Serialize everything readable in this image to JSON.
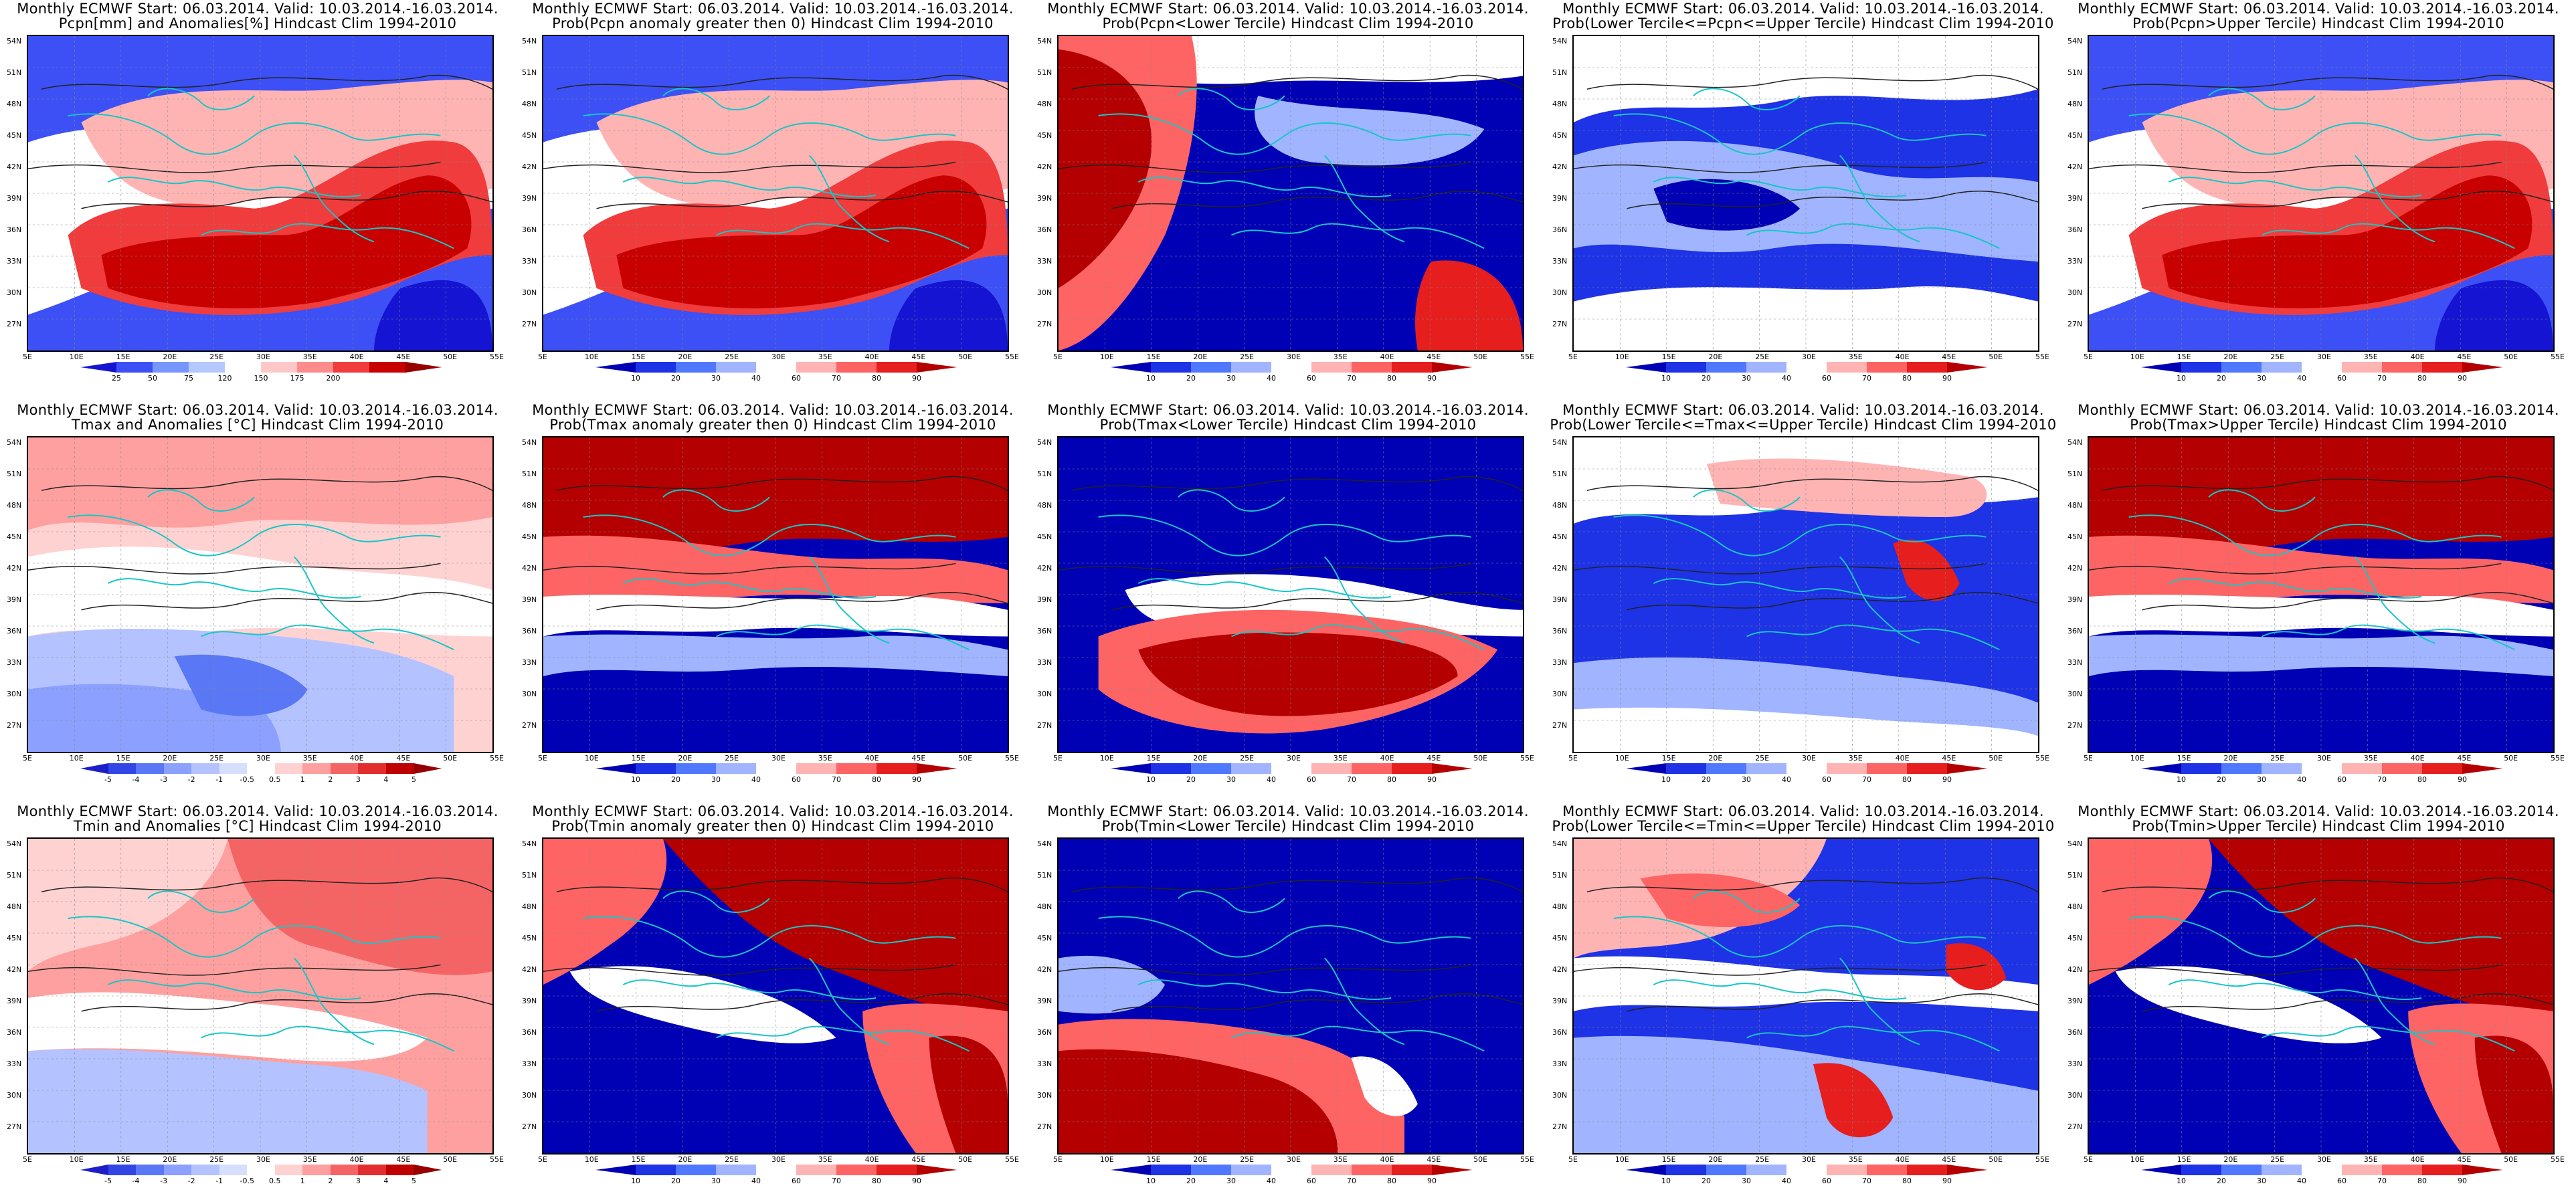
{
  "map_axes": {
    "lat_labels": [
      "54N",
      "51N",
      "48N",
      "45N",
      "42N",
      "39N",
      "36N",
      "33N",
      "30N",
      "27N"
    ],
    "lon_labels": [
      "5E",
      "10E",
      "15E",
      "20E",
      "25E",
      "30E",
      "35E",
      "40E",
      "45E",
      "50E",
      "55E"
    ]
  },
  "colorbars": {
    "precip_anomaly": {
      "ticks": [
        "25",
        "50",
        "75",
        "120",
        "150",
        "175",
        "200"
      ],
      "colors": [
        "#1414d2",
        "#3c50f5",
        "#7896ff",
        "#b4c8ff",
        "#ffffff",
        "#ffc8c8",
        "#ff8c8c",
        "#f03c3c",
        "#c80000",
        "#960000"
      ]
    },
    "probability": {
      "ticks": [
        "10",
        "20",
        "30",
        "40",
        "60",
        "70",
        "80",
        "90"
      ],
      "colors": [
        "#0000b4",
        "#1e32e6",
        "#5078ff",
        "#a0b4ff",
        "#ffffff",
        "#ffb4b4",
        "#ff6464",
        "#e61e1e",
        "#b40000"
      ]
    },
    "temp_anomaly": {
      "ticks": [
        "-5",
        "-4",
        "-3",
        "-2",
        "-1",
        "-0.5",
        "0.5",
        "1",
        "2",
        "3",
        "4",
        "5"
      ],
      "colors": [
        "#1e1ec8",
        "#3246e6",
        "#5a78f5",
        "#8ca0ff",
        "#b4c3ff",
        "#d7dfff",
        "#ffffff",
        "#ffd2d2",
        "#ffa0a0",
        "#f56464",
        "#e12d2d",
        "#be0000",
        "#960000"
      ]
    }
  },
  "panels": [
    {
      "title_line1": "Monthly ECMWF Start: 06.03.2014. Valid: 10.03.2014.-16.03.2014.",
      "title_line2": "Pcpn[mm] and Anomalies[%] Hindcast Clim 1994-2010",
      "colorbar": "precip_anomaly",
      "pattern": "precip_mean"
    },
    {
      "title_line1": "Monthly ECMWF Start: 06.03.2014. Valid: 10.03.2014.-16.03.2014.",
      "title_line2": "Prob(Pcpn anomaly greater then 0) Hindcast Clim 1994-2010",
      "colorbar": "probability",
      "pattern": "precip_mean"
    },
    {
      "title_line1": "Monthly ECMWF Start: 06.03.2014. Valid: 10.03.2014.-16.03.2014.",
      "title_line2": "Prob(Pcpn<Lower Tercile) Hindcast Clim 1994-2010",
      "colorbar": "probability",
      "pattern": "precip_low"
    },
    {
      "title_line1": "Monthly ECMWF Start: 06.03.2014. Valid: 10.03.2014.-16.03.2014.",
      "title_line2": "Prob(Lower Tercile<=Pcpn<=Upper Tercile) Hindcast Clim 1994-2010",
      "colorbar": "probability",
      "pattern": "precip_mid"
    },
    {
      "title_line1": "Monthly ECMWF Start: 06.03.2014. Valid: 10.03.2014.-16.03.2014.",
      "title_line2": "Prob(Pcpn>Upper Tercile) Hindcast Clim 1994-2010",
      "colorbar": "probability",
      "pattern": "precip_mean"
    },
    {
      "title_line1": "Monthly ECMWF Start: 06.03.2014. Valid: 10.03.2014.-16.03.2014.",
      "title_line2": "Tmax and Anomalies [°C] Hindcast Clim 1994-2010",
      "colorbar": "temp_anomaly",
      "pattern": "tmax_mean"
    },
    {
      "title_line1": "Monthly ECMWF Start: 06.03.2014. Valid: 10.03.2014.-16.03.2014.",
      "title_line2": "Prob(Tmax anomaly greater then 0) Hindcast Clim 1994-2010",
      "colorbar": "probability",
      "pattern": "tmax_prob"
    },
    {
      "title_line1": "Monthly ECMWF Start: 06.03.2014. Valid: 10.03.2014.-16.03.2014.",
      "title_line2": "Prob(Tmax<Lower Tercile) Hindcast Clim 1994-2010",
      "colorbar": "probability",
      "pattern": "tmax_low"
    },
    {
      "title_line1": "Monthly ECMWF Start: 06.03.2014. Valid: 10.03.2014.-16.03.2014.",
      "title_line2": "Prob(Lower Tercile<=Tmax<=Upper Tercile) Hindcast Clim 1994-2010",
      "colorbar": "probability",
      "pattern": "tmax_mid"
    },
    {
      "title_line1": "Monthly ECMWF Start: 06.03.2014. Valid: 10.03.2014.-16.03.2014.",
      "title_line2": "Prob(Tmax>Upper Tercile) Hindcast Clim 1994-2010",
      "colorbar": "probability",
      "pattern": "tmax_prob"
    },
    {
      "title_line1": "Monthly ECMWF Start: 06.03.2014. Valid: 10.03.2014.-16.03.2014.",
      "title_line2": "Tmin and Anomalies [°C] Hindcast Clim 1994-2010",
      "colorbar": "temp_anomaly",
      "pattern": "tmin_mean"
    },
    {
      "title_line1": "Monthly ECMWF Start: 06.03.2014. Valid: 10.03.2014.-16.03.2014.",
      "title_line2": "Prob(Tmin anomaly greater then 0) Hindcast Clim 1994-2010",
      "colorbar": "probability",
      "pattern": "tmin_prob"
    },
    {
      "title_line1": "Monthly ECMWF Start: 06.03.2014. Valid: 10.03.2014.-16.03.2014.",
      "title_line2": "Prob(Tmin<Lower Tercile) Hindcast Clim 1994-2010",
      "colorbar": "probability",
      "pattern": "tmin_low"
    },
    {
      "title_line1": "Monthly ECMWF Start: 06.03.2014. Valid: 10.03.2014.-16.03.2014.",
      "title_line2": "Prob(Lower Tercile<=Tmin<=Upper Tercile) Hindcast Clim 1994-2010",
      "colorbar": "probability",
      "pattern": "tmin_mid"
    },
    {
      "title_line1": "Monthly ECMWF Start: 06.03.2014. Valid: 10.03.2014.-16.03.2014.",
      "title_line2": "Prob(Tmin>Upper Tercile) Hindcast Clim 1994-2010",
      "colorbar": "probability",
      "pattern": "tmin_prob"
    }
  ]
}
